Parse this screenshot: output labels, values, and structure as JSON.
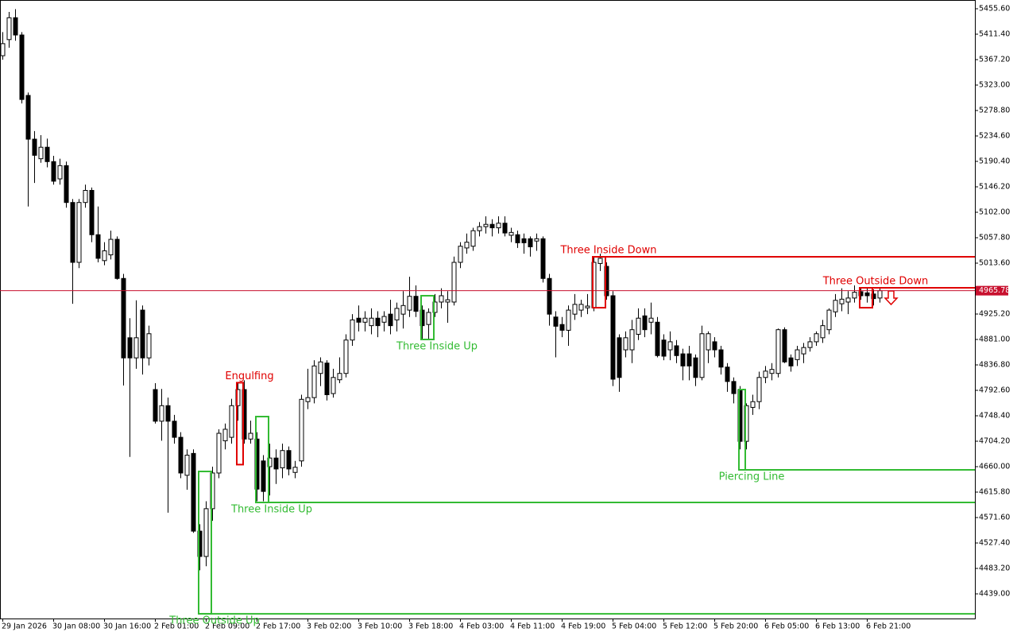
{
  "chart_data": {
    "type": "candlestick",
    "ylim": [
      4396.2,
      5470.8
    ],
    "yticks": [
      {
        "value": 5455.6,
        "label": "5455.60"
      },
      {
        "value": 5411.4,
        "label": "5411.40"
      },
      {
        "value": 5367.2,
        "label": "5367.20"
      },
      {
        "value": 5323.0,
        "label": "5323.00"
      },
      {
        "value": 5278.8,
        "label": "5278.80"
      },
      {
        "value": 5234.6,
        "label": "5234.60"
      },
      {
        "value": 5190.4,
        "label": "5190.40"
      },
      {
        "value": 5146.2,
        "label": "5146.20"
      },
      {
        "value": 5102.0,
        "label": "5102.00"
      },
      {
        "value": 5057.8,
        "label": "5057.80"
      },
      {
        "value": 5013.6,
        "label": "5013.60"
      },
      {
        "value": 4925.2,
        "label": "4925.20"
      },
      {
        "value": 4881.0,
        "label": "4881.00"
      },
      {
        "value": 4836.8,
        "label": "4836.80"
      },
      {
        "value": 4792.6,
        "label": "4792.60"
      },
      {
        "value": 4748.4,
        "label": "4748.40"
      },
      {
        "value": 4704.2,
        "label": "4704.20"
      },
      {
        "value": 4660.0,
        "label": "4660.00"
      },
      {
        "value": 4615.8,
        "label": "4615.80"
      },
      {
        "value": 4571.6,
        "label": "4571.60"
      },
      {
        "value": 4527.4,
        "label": "4527.40"
      },
      {
        "value": 4483.2,
        "label": "4483.20"
      },
      {
        "value": 4439.0,
        "label": "4439.00"
      }
    ],
    "categories": [
      "29 Jan 2026",
      null,
      null,
      null,
      null,
      null,
      null,
      null,
      "30 Jan 08:00",
      null,
      null,
      null,
      null,
      null,
      null,
      null,
      "30 Jan 16:00",
      null,
      null,
      null,
      null,
      null,
      null,
      null,
      "2 Feb 01:00",
      null,
      null,
      null,
      null,
      null,
      null,
      null,
      "2 Feb 09:00",
      null,
      null,
      null,
      null,
      null,
      null,
      null,
      "2 Feb 17:00",
      null,
      null,
      null,
      null,
      null,
      null,
      null,
      "3 Feb 02:00",
      null,
      null,
      null,
      null,
      null,
      null,
      null,
      "3 Feb 10:00",
      null,
      null,
      null,
      null,
      null,
      null,
      null,
      "3 Feb 18:00",
      null,
      null,
      null,
      null,
      null,
      null,
      null,
      "4 Feb 03:00",
      null,
      null,
      null,
      null,
      null,
      null,
      null,
      "4 Feb 11:00",
      null,
      null,
      null,
      null,
      null,
      null,
      null,
      "4 Feb 19:00",
      null,
      null,
      null,
      null,
      null,
      null,
      null,
      "5 Feb 04:00",
      null,
      null,
      null,
      null,
      null,
      null,
      null,
      "5 Feb 12:00",
      null,
      null,
      null,
      null,
      null,
      null,
      null,
      "5 Feb 20:00",
      null,
      null,
      null,
      null,
      null,
      null,
      null,
      "6 Feb 05:00",
      null,
      null,
      null,
      null,
      null,
      null,
      null,
      "6 Feb 13:00",
      null,
      null,
      null,
      null,
      null,
      null,
      null,
      "6 Feb 21:00",
      null,
      null
    ],
    "ohlc": [
      [
        5374,
        5415,
        5367,
        5395
      ],
      [
        5402,
        5450,
        5388,
        5440
      ],
      [
        5440,
        5455,
        5400,
        5410
      ],
      [
        5410,
        5415,
        5291,
        5298
      ],
      [
        5305,
        5310,
        5112,
        5229
      ],
      [
        5229,
        5243,
        5153,
        5201
      ],
      [
        5195,
        5236,
        5188,
        5215
      ],
      [
        5215,
        5230,
        5180,
        5190
      ],
      [
        5190,
        5200,
        5150,
        5156
      ],
      [
        5160,
        5195,
        5150,
        5183
      ],
      [
        5183,
        5190,
        5110,
        5119
      ],
      [
        5119,
        5125,
        4943,
        5015
      ],
      [
        5015,
        5125,
        5005,
        5119
      ],
      [
        5119,
        5150,
        5110,
        5140
      ],
      [
        5140,
        5145,
        5050,
        5063
      ],
      [
        5063,
        5112,
        5015,
        5022
      ],
      [
        5018,
        5050,
        5010,
        5035
      ],
      [
        5028,
        5070,
        5020,
        5055
      ],
      [
        5055,
        5060,
        4985,
        4987
      ],
      [
        4987,
        4995,
        4801,
        4849
      ],
      [
        4884,
        4918,
        4677,
        4849
      ],
      [
        4849,
        4949,
        4830,
        4884
      ],
      [
        4932,
        4940,
        4820,
        4849
      ],
      [
        4849,
        4905,
        4836,
        4891
      ],
      [
        4794,
        4805,
        4735,
        4739
      ],
      [
        4739,
        4795,
        4705,
        4766
      ],
      [
        4766,
        4780,
        4580,
        4739
      ],
      [
        4739,
        4750,
        4700,
        4711
      ],
      [
        4711,
        4720,
        4640,
        4649
      ],
      [
        4645,
        4690,
        4620,
        4680
      ],
      [
        4683,
        4690,
        4545,
        4548
      ],
      [
        4548,
        4560,
        4480,
        4504
      ],
      [
        4504,
        4600,
        4487,
        4587
      ],
      [
        4587,
        4660,
        4566,
        4649
      ],
      [
        4649,
        4725,
        4640,
        4718
      ],
      [
        4705,
        4735,
        4690,
        4725
      ],
      [
        4711,
        4778,
        4700,
        4766
      ],
      [
        4766,
        4805,
        4740,
        4794
      ],
      [
        4794,
        4810,
        4700,
        4708
      ],
      [
        4708,
        4740,
        4700,
        4718
      ],
      [
        4708,
        4720,
        4600,
        4621
      ],
      [
        4670,
        4680,
        4600,
        4617
      ],
      [
        4660,
        4700,
        4610,
        4675
      ],
      [
        4675,
        4690,
        4630,
        4656
      ],
      [
        4658,
        4700,
        4640,
        4688
      ],
      [
        4688,
        4695,
        4645,
        4656
      ],
      [
        4650,
        4670,
        4640,
        4659
      ],
      [
        4670,
        4785,
        4660,
        4777
      ],
      [
        4773,
        4830,
        4760,
        4780
      ],
      [
        4780,
        4845,
        4770,
        4835
      ],
      [
        4822,
        4850,
        4800,
        4842
      ],
      [
        4840,
        4845,
        4775,
        4785
      ],
      [
        4787,
        4830,
        4780,
        4815
      ],
      [
        4811,
        4850,
        4805,
        4822
      ],
      [
        4822,
        4890,
        4815,
        4880
      ],
      [
        4880,
        4925,
        4870,
        4915
      ],
      [
        4918,
        4940,
        4895,
        4911
      ],
      [
        4911,
        4930,
        4895,
        4918
      ],
      [
        4905,
        4935,
        4890,
        4918
      ],
      [
        4918,
        4930,
        4885,
        4905
      ],
      [
        4911,
        4930,
        4895,
        4921
      ],
      [
        4925,
        4950,
        4890,
        4905
      ],
      [
        4915,
        4945,
        4895,
        4935
      ],
      [
        4925,
        4965,
        4900,
        4940
      ],
      [
        4932,
        4990,
        4920,
        4956
      ],
      [
        4956,
        4975,
        4920,
        4930
      ],
      [
        4932,
        4940,
        4880,
        4905
      ],
      [
        4907,
        4935,
        4881,
        4928
      ],
      [
        4928,
        4960,
        4920,
        4946
      ],
      [
        4946,
        4970,
        4935,
        4957
      ],
      [
        4946,
        4965,
        4910,
        4950
      ],
      [
        4946,
        5025,
        4940,
        5015
      ],
      [
        5015,
        5050,
        5005,
        5043
      ],
      [
        5040,
        5065,
        5030,
        5050
      ],
      [
        5043,
        5075,
        5035,
        5070
      ],
      [
        5070,
        5085,
        5060,
        5077
      ],
      [
        5077,
        5095,
        5065,
        5081
      ],
      [
        5081,
        5090,
        5060,
        5075
      ],
      [
        5075,
        5095,
        5065,
        5083
      ],
      [
        5083,
        5095,
        5060,
        5066
      ],
      [
        5062,
        5075,
        5050,
        5067
      ],
      [
        5063,
        5070,
        5040,
        5049
      ],
      [
        5056,
        5065,
        5030,
        5049
      ],
      [
        5056,
        5060,
        5025,
        5042
      ],
      [
        5052,
        5065,
        5035,
        5056
      ],
      [
        5056,
        5060,
        4980,
        4987
      ],
      [
        4987,
        4995,
        4905,
        4925
      ],
      [
        4920,
        4930,
        4850,
        4904
      ],
      [
        4907,
        4920,
        4885,
        4897
      ],
      [
        4897,
        4940,
        4870,
        4932
      ],
      [
        4925,
        4960,
        4915,
        4942
      ],
      [
        4932,
        4950,
        4920,
        4942
      ],
      [
        4936,
        4960,
        4925,
        4939
      ],
      [
        4936,
        5025,
        4930,
        5015
      ],
      [
        5013,
        5030,
        5000,
        5022
      ],
      [
        5008,
        5015,
        4950,
        4957
      ],
      [
        4957,
        4965,
        4800,
        4812
      ],
      [
        4884,
        4890,
        4790,
        4815
      ],
      [
        4863,
        4895,
        4850,
        4884
      ],
      [
        4863,
        4915,
        4840,
        4898
      ],
      [
        4890,
        4935,
        4880,
        4918
      ],
      [
        4922,
        4935,
        4885,
        4898
      ],
      [
        4911,
        4945,
        4890,
        4918
      ],
      [
        4911,
        4920,
        4850,
        4853
      ],
      [
        4880,
        4890,
        4845,
        4852
      ],
      [
        4863,
        4895,
        4845,
        4877
      ],
      [
        4870,
        4880,
        4840,
        4853
      ],
      [
        4856,
        4865,
        4810,
        4835
      ],
      [
        4856,
        4870,
        4810,
        4835
      ],
      [
        4849,
        4855,
        4800,
        4815
      ],
      [
        4815,
        4905,
        4810,
        4891
      ],
      [
        4863,
        4895,
        4840,
        4891
      ],
      [
        4877,
        4885,
        4850,
        4863
      ],
      [
        4863,
        4870,
        4820,
        4833
      ],
      [
        4833,
        4840,
        4790,
        4808
      ],
      [
        4808,
        4815,
        4770,
        4787
      ],
      [
        4794,
        4800,
        4690,
        4704
      ],
      [
        4704,
        4770,
        4690,
        4766
      ],
      [
        4763,
        4785,
        4750,
        4773
      ],
      [
        4773,
        4825,
        4760,
        4815
      ],
      [
        4815,
        4835,
        4805,
        4826
      ],
      [
        4822,
        4840,
        4810,
        4829
      ],
      [
        4822,
        4900,
        4815,
        4898
      ],
      [
        4898,
        4902,
        4840,
        4842
      ],
      [
        4849,
        4855,
        4825,
        4835
      ],
      [
        4846,
        4870,
        4835,
        4863
      ],
      [
        4856,
        4875,
        4840,
        4867
      ],
      [
        4867,
        4885,
        4860,
        4877
      ],
      [
        4877,
        4895,
        4870,
        4891
      ],
      [
        4884,
        4915,
        4875,
        4905
      ],
      [
        4898,
        4935,
        4890,
        4932
      ],
      [
        4929,
        4960,
        4920,
        4949
      ],
      [
        4943,
        4970,
        4930,
        4951
      ],
      [
        4946,
        4965,
        4925,
        4953
      ],
      [
        4953,
        4975,
        4945,
        4963
      ],
      [
        4964,
        4972,
        4950,
        4957
      ],
      [
        4962,
        4970,
        4945,
        4957
      ],
      [
        4960,
        4968,
        4940,
        4952
      ],
      [
        4953,
        4972,
        4945,
        4965.78
      ]
    ],
    "up_color": "#ffffff",
    "down_color": "#000000",
    "current_price": 4965.78,
    "current_price_color": "#c8102e",
    "patterns": [
      {
        "name": "Three Outside Up",
        "color": "#33bb33",
        "start": 31,
        "end": 33,
        "top": 4651.7,
        "bottom": 4404.4,
        "line": "bottom",
        "label_position": "below"
      },
      {
        "name": "Engulfing",
        "color": "#e00000",
        "start": 37,
        "end": 38,
        "top": 4805.9,
        "bottom": 4663.6,
        "label_position": "above"
      },
      {
        "name": "Three Inside Up",
        "color": "#33bb33",
        "start": 40,
        "end": 42,
        "top": 4747.0,
        "bottom": 4597.8,
        "line": "bottom",
        "label_position": "below"
      },
      {
        "name": "Three Inside Up",
        "color": "#33bb33",
        "start": 66,
        "end": 68,
        "top": 4957.0,
        "bottom": 4881.0,
        "label_position": "below"
      },
      {
        "name": "Three Inside Down",
        "color": "#e00000",
        "start": 93,
        "end": 95,
        "top": 5024.6,
        "bottom": 4936.2,
        "line": "top",
        "label_position": "above"
      },
      {
        "name": "Piercing Line",
        "color": "#33bb33",
        "start": 116,
        "end": 117,
        "top": 4794.0,
        "bottom": 4654.5,
        "line": "bottom",
        "label_position": "below"
      },
      {
        "name": "Three Outside Down",
        "color": "#e00000",
        "start": 135,
        "end": 137,
        "top": 4970.8,
        "bottom": 4936.2,
        "line": "top",
        "label_position": "above"
      }
    ]
  }
}
